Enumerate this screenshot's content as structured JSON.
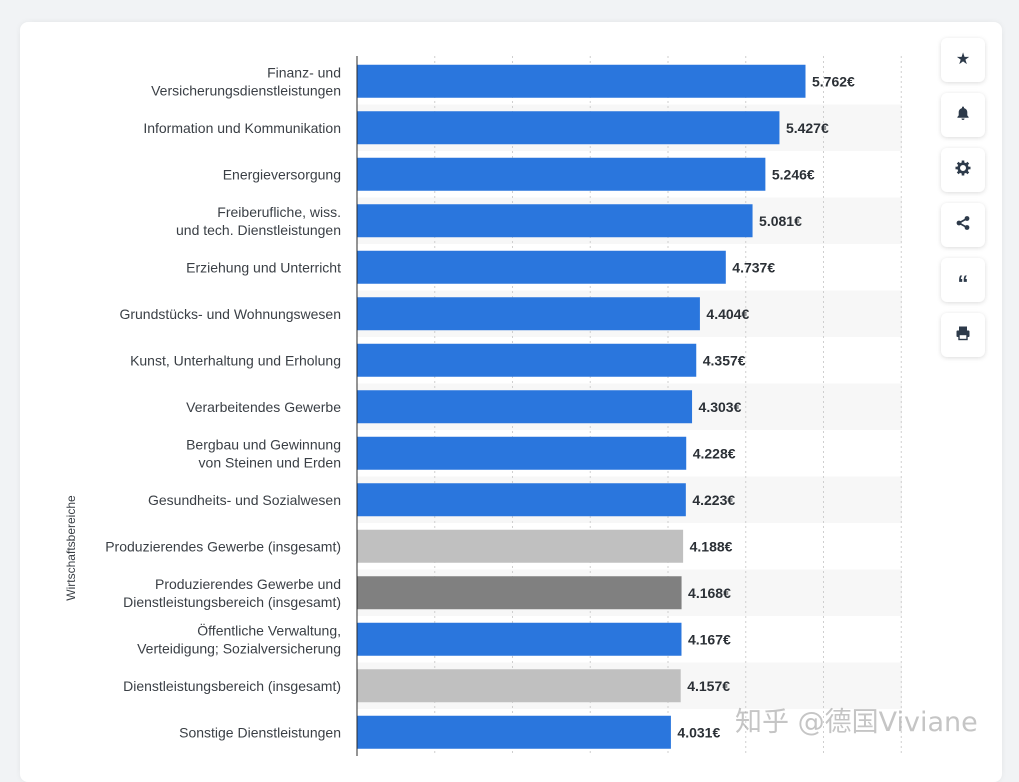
{
  "chart_data": {
    "type": "bar",
    "orientation": "horizontal",
    "ylabel": "Wirtschaftsbereiche",
    "xlim": [
      0,
      7000
    ],
    "grid": true,
    "value_suffix": "€",
    "categories": [
      [
        "Finanz- und",
        "Versicherungsdienstleistungen"
      ],
      [
        "Information und Kommunikation"
      ],
      [
        "Energieversorgung"
      ],
      [
        "Freiberufliche, wiss.",
        "und tech. Dienstleistungen"
      ],
      [
        "Erziehung und Unterricht"
      ],
      [
        "Grundstücks- und Wohnungswesen"
      ],
      [
        "Kunst, Unterhaltung und Erholung"
      ],
      [
        "Verarbeitendes Gewerbe"
      ],
      [
        "Bergbau und Gewinnung",
        "von Steinen und Erden"
      ],
      [
        "Gesundheits- und Sozialwesen"
      ],
      [
        "Produzierendes Gewerbe (insgesamt)"
      ],
      [
        "Produzierendes Gewerbe und",
        "Dienstleistungsbereich (insgesamt)"
      ],
      [
        "Öffentliche Verwaltung,",
        "Verteidigung; Sozialversicherung"
      ],
      [
        "Dienstleistungsbereich (insgesamt)"
      ],
      [
        "Sonstige Dienstleistungen"
      ]
    ],
    "values": [
      5762,
      5427,
      5246,
      5081,
      4737,
      4404,
      4357,
      4303,
      4228,
      4223,
      4188,
      4168,
      4167,
      4157,
      4031
    ],
    "value_labels": [
      "5.762€",
      "5.427€",
      "5.246€",
      "5.081€",
      "4.737€",
      "4.404€",
      "4.357€",
      "4.303€",
      "4.228€",
      "4.223€",
      "4.188€",
      "4.168€",
      "4.167€",
      "4.157€",
      "4.031€"
    ],
    "bar_colors": [
      "#2a76dd",
      "#2a76dd",
      "#2a76dd",
      "#2a76dd",
      "#2a76dd",
      "#2a76dd",
      "#2a76dd",
      "#2a76dd",
      "#2a76dd",
      "#2a76dd",
      "#c0c0c0",
      "#808080",
      "#2a76dd",
      "#c0c0c0",
      "#2a76dd"
    ]
  },
  "toolbar": {
    "icons": [
      "star-icon",
      "bell-icon",
      "gear-icon",
      "share-icon",
      "quote-icon",
      "print-icon"
    ]
  },
  "watermark": "知乎 @德国Viviane"
}
